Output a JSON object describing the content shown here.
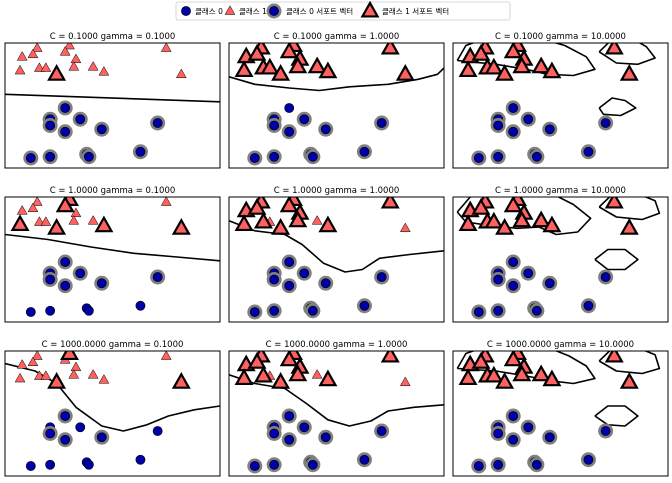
{
  "chart_data": {
    "type": "scatter",
    "title": "",
    "xlabel": "",
    "ylabel": "",
    "grid": false,
    "legend_position": "top-center",
    "colors": {
      "class0": "#0000aa",
      "class1": "#ff6060",
      "support_ring": "#808080",
      "boundary": "#000000",
      "axes": "#000000"
    },
    "legend": [
      {
        "label": "클래스 0",
        "marker": "circle",
        "support": false
      },
      {
        "label": "클래스 1",
        "marker": "triangle",
        "support": false
      },
      {
        "label": "클래스 0 서포트 벡터",
        "marker": "circle",
        "support": true
      },
      {
        "label": "클래스 1 서포트 벡터",
        "marker": "triangle",
        "support": true
      }
    ],
    "xlim": [
      0,
      100
    ],
    "ylim": [
      0,
      100
    ],
    "points": {
      "class0": [
        [
          28,
          48
        ],
        [
          21,
          39
        ],
        [
          35,
          39
        ],
        [
          21,
          34
        ],
        [
          45,
          31
        ],
        [
          71,
          36
        ],
        [
          28,
          29
        ],
        [
          38,
          11
        ],
        [
          12,
          8
        ],
        [
          21,
          9
        ],
        [
          39,
          9
        ],
        [
          63,
          13
        ]
      ],
      "class1": [
        [
          8,
          89
        ],
        [
          15,
          96
        ],
        [
          7,
          78
        ],
        [
          13,
          91
        ],
        [
          30,
          98
        ],
        [
          28,
          93
        ],
        [
          33,
          87
        ],
        [
          32,
          81
        ],
        [
          41,
          81
        ],
        [
          16,
          80
        ],
        [
          19,
          80
        ],
        [
          46,
          77
        ],
        [
          24,
          75
        ],
        [
          75,
          96
        ],
        [
          82,
          75
        ]
      ]
    },
    "panels": [
      {
        "title": "C = 0.1000 gamma = 0.1000",
        "sv0": [
          0,
          1,
          2,
          3,
          4,
          5,
          6,
          7,
          8,
          9,
          10,
          11
        ],
        "sv1": [
          12
        ],
        "boundary": [
          [
            [
              0,
              59
            ],
            [
              100,
              53
            ]
          ]
        ]
      },
      {
        "title": "C = 0.1000 gamma = 1.0000",
        "sv0": [
          1,
          2,
          3,
          4,
          5,
          6,
          7,
          8,
          9,
          10,
          11
        ],
        "sv1": [
          0,
          1,
          2,
          3,
          4,
          5,
          6,
          7,
          8,
          9,
          10,
          11,
          12,
          13,
          14
        ],
        "boundary": [
          [
            [
              0,
              73
            ],
            [
              12,
              67
            ],
            [
              28,
              64
            ],
            [
              42,
              62
            ],
            [
              56,
              65
            ],
            [
              74,
              67
            ],
            [
              88,
              71
            ],
            [
              97,
              75
            ],
            [
              100,
              80
            ]
          ]
        ]
      },
      {
        "title": "C = 0.1000 gamma = 10.0000",
        "sv0": [
          0,
          1,
          2,
          3,
          4,
          5,
          6,
          7,
          8,
          9,
          10,
          11
        ],
        "sv1": [
          0,
          1,
          2,
          3,
          4,
          5,
          6,
          7,
          8,
          9,
          10,
          11,
          12,
          13,
          14
        ],
        "boundary": [
          [
            [
              2,
              86
            ],
            [
              6,
              98
            ],
            [
              14,
              103
            ],
            [
              28,
              106
            ],
            [
              42,
              103
            ],
            [
              52,
              98
            ],
            [
              62,
              89
            ],
            [
              66,
              79
            ],
            [
              56,
              74
            ],
            [
              44,
              75
            ],
            [
              34,
              79
            ],
            [
              20,
              83
            ],
            [
              2,
              86
            ]
          ],
          [
            [
              68,
              93
            ],
            [
              74,
              103
            ],
            [
              82,
              105
            ],
            [
              90,
              97
            ],
            [
              94,
              88
            ],
            [
              86,
              83
            ],
            [
              76,
              84
            ],
            [
              68,
              93
            ]
          ],
          [
            [
              68,
              48
            ],
            [
              74,
              56
            ],
            [
              80,
              54
            ],
            [
              85,
              48
            ],
            [
              78,
              42
            ],
            [
              70,
              43
            ],
            [
              68,
              48
            ]
          ]
        ]
      },
      {
        "title": "C = 1.0000 gamma = 0.1000",
        "sv0": [
          0,
          1,
          2,
          3,
          4,
          5,
          6
        ],
        "sv1": [
          2,
          4,
          5,
          11,
          12,
          14
        ],
        "boundary": [
          [
            [
              0,
              70
            ],
            [
              20,
              66
            ],
            [
              40,
              60
            ],
            [
              60,
              55
            ],
            [
              80,
              52
            ],
            [
              100,
              49
            ]
          ]
        ]
      },
      {
        "title": "C = 1.0000 gamma = 1.0000",
        "sv0": [
          0,
          1,
          2,
          3,
          4,
          5,
          6,
          7,
          8,
          9,
          10,
          11
        ],
        "sv1": [
          0,
          1,
          2,
          3,
          4,
          5,
          6,
          7,
          9,
          11,
          12,
          13
        ],
        "boundary": [
          [
            [
              0,
              81
            ],
            [
              12,
              73
            ],
            [
              26,
              70
            ],
            [
              34,
              62
            ],
            [
              44,
              47
            ],
            [
              54,
              40
            ],
            [
              62,
              42
            ],
            [
              70,
              51
            ],
            [
              84,
              54
            ],
            [
              100,
              57
            ]
          ]
        ]
      },
      {
        "title": "C = 1.0000 gamma = 10.0000",
        "sv0": [
          0,
          1,
          2,
          3,
          4,
          5,
          6,
          7,
          8,
          9,
          10,
          11
        ],
        "sv1": [
          0,
          1,
          2,
          3,
          4,
          5,
          6,
          7,
          8,
          9,
          10,
          11,
          12,
          13,
          14
        ],
        "boundary": [
          [
            [
              2,
              88
            ],
            [
              8,
              100
            ],
            [
              20,
              106
            ],
            [
              36,
              107
            ],
            [
              48,
              101
            ],
            [
              56,
              94
            ],
            [
              64,
              83
            ],
            [
              58,
              72
            ],
            [
              48,
              70
            ],
            [
              40,
              76
            ],
            [
              30,
              75
            ],
            [
              18,
              77
            ],
            [
              6,
              80
            ],
            [
              2,
              88
            ]
          ],
          [
            [
              68,
              92
            ],
            [
              74,
              102
            ],
            [
              84,
              104
            ],
            [
              94,
              97
            ],
            [
              96,
              87
            ],
            [
              88,
              82
            ],
            [
              76,
              84
            ],
            [
              68,
              92
            ]
          ],
          [
            [
              66,
              50
            ],
            [
              72,
              58
            ],
            [
              80,
              58
            ],
            [
              86,
              50
            ],
            [
              80,
              42
            ],
            [
              72,
              42
            ],
            [
              66,
              50
            ]
          ]
        ]
      },
      {
        "title": "C = 1000.0000 gamma = 0.1000",
        "sv0": [
          0,
          3,
          4,
          6
        ],
        "sv1": [
          4,
          12,
          14
        ],
        "boundary": [
          [
            [
              0,
              90
            ],
            [
              14,
              84
            ],
            [
              24,
              74
            ],
            [
              33,
              55
            ],
            [
              45,
              40
            ],
            [
              55,
              36
            ],
            [
              66,
              41
            ],
            [
              76,
              48
            ],
            [
              88,
              53
            ],
            [
              100,
              56
            ]
          ]
        ]
      },
      {
        "title": "C = 1000.0000 gamma = 1.0000",
        "sv0": [
          0,
          1,
          2,
          3,
          4,
          5,
          6,
          7,
          8,
          9,
          10,
          11
        ],
        "sv1": [
          0,
          1,
          2,
          3,
          4,
          5,
          6,
          7,
          9,
          11,
          12,
          13
        ],
        "boundary": [
          [
            [
              0,
              81
            ],
            [
              12,
              74
            ],
            [
              26,
              70
            ],
            [
              36,
              58
            ],
            [
              46,
              45
            ],
            [
              56,
              40
            ],
            [
              66,
              44
            ],
            [
              74,
              52
            ],
            [
              86,
              55
            ],
            [
              100,
              57
            ]
          ]
        ]
      },
      {
        "title": "C = 1000.0000 gamma = 10.0000",
        "sv0": [
          0,
          1,
          2,
          3,
          4,
          5,
          6,
          7,
          8,
          9,
          10,
          11
        ],
        "sv1": [
          0,
          1,
          2,
          3,
          4,
          5,
          6,
          7,
          8,
          9,
          10,
          11,
          12,
          13,
          14
        ],
        "boundary": [
          [
            [
              2,
              86
            ],
            [
              6,
              98
            ],
            [
              16,
              104
            ],
            [
              30,
              106
            ],
            [
              44,
              103
            ],
            [
              54,
              96
            ],
            [
              62,
              88
            ],
            [
              66,
              78
            ],
            [
              56,
              74
            ],
            [
              46,
              76
            ],
            [
              34,
              80
            ],
            [
              20,
              84
            ],
            [
              2,
              86
            ]
          ],
          [
            [
              68,
              92
            ],
            [
              74,
              102
            ],
            [
              84,
              104
            ],
            [
              94,
              97
            ],
            [
              96,
              86
            ],
            [
              88,
              82
            ],
            [
              76,
              84
            ],
            [
              68,
              92
            ]
          ],
          [
            [
              66,
              48
            ],
            [
              72,
              56
            ],
            [
              80,
              56
            ],
            [
              86,
              48
            ],
            [
              80,
              40
            ],
            [
              72,
              41
            ],
            [
              66,
              48
            ]
          ]
        ]
      }
    ]
  }
}
